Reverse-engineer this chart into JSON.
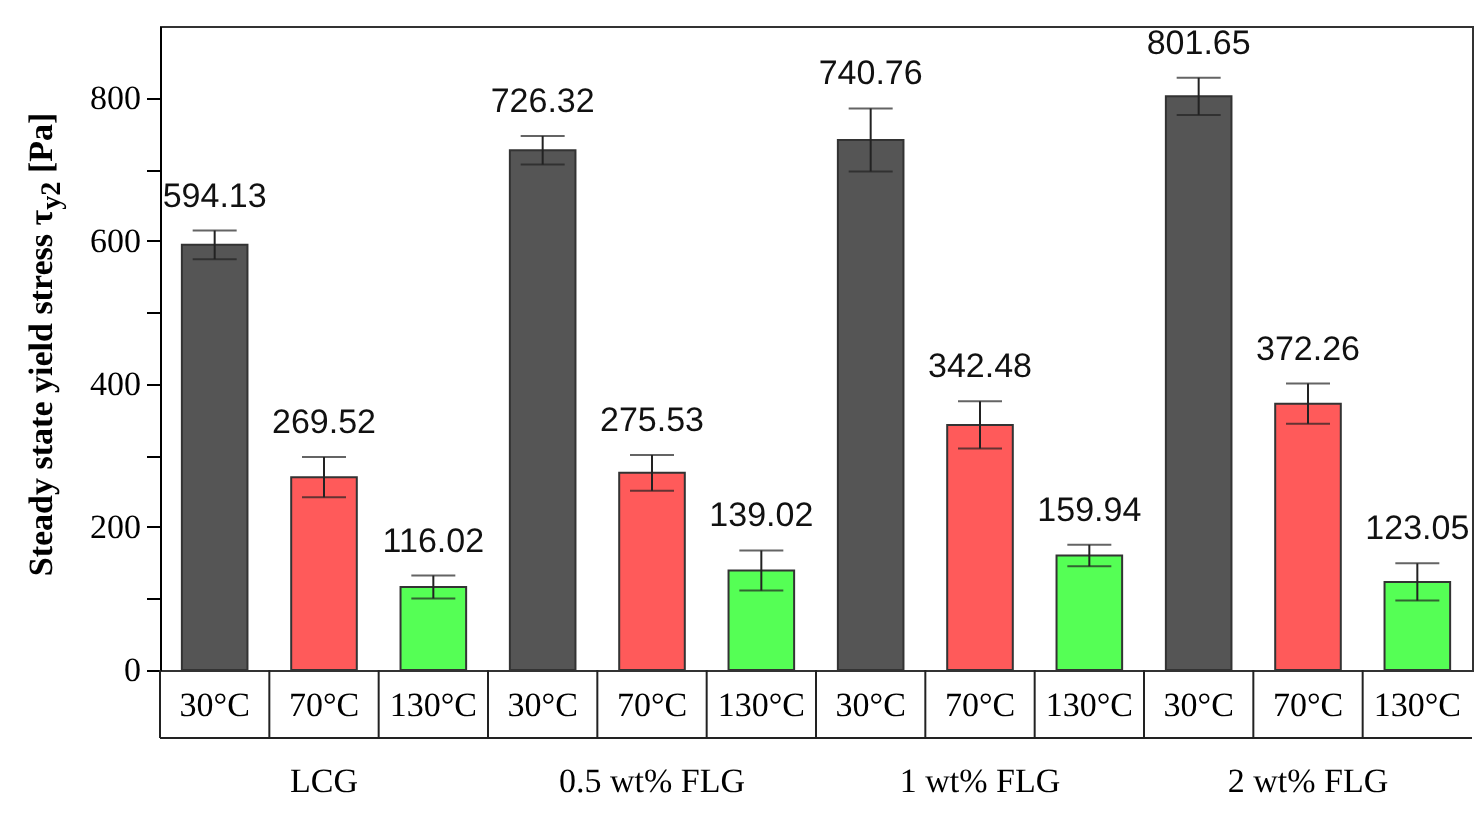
{
  "chart_data": {
    "type": "bar",
    "ylabel": "Steady state yield stress  τ$_{y2}$ [Pa]",
    "categories": [
      "LCG",
      "0.5 wt% FLG",
      "1 wt% FLG",
      "2 wt% FLG"
    ],
    "series": [
      {
        "name": "30°C",
        "color": "#555555",
        "values": [
          594.13,
          726.32,
          740.76,
          801.65
        ],
        "errors": [
          20,
          20,
          44,
          26
        ]
      },
      {
        "name": "70°C",
        "color": "#ff5a5a",
        "values": [
          269.52,
          275.53,
          342.48,
          372.26
        ],
        "errors": [
          28,
          25,
          33,
          28
        ]
      },
      {
        "name": "130°C",
        "color": "#55ff55",
        "values": [
          116.02,
          139.02,
          159.94,
          123.05
        ],
        "errors": [
          16,
          28,
          15,
          26
        ]
      }
    ],
    "ylim": [
      0,
      900
    ],
    "yticks": [
      0,
      {
        "value": 100,
        "label": null
      },
      200,
      {
        "value": 300,
        "label": null
      },
      400,
      {
        "value": 500,
        "label": null
      },
      600,
      {
        "value": 700,
        "label": null
      },
      800
    ],
    "data_labels": true,
    "grid": false
  }
}
